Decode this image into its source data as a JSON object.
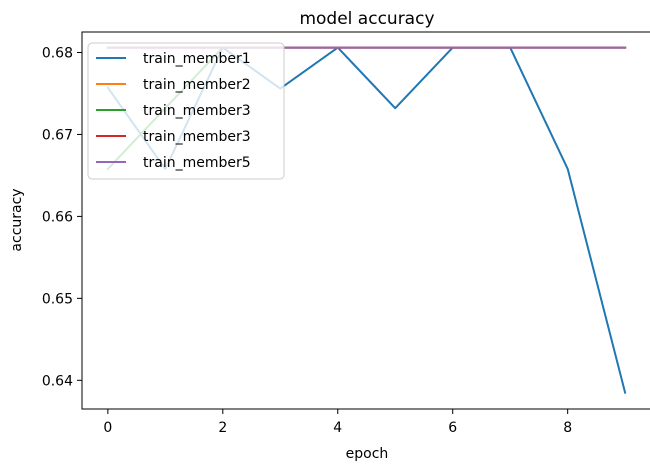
{
  "chart_data": {
    "type": "line",
    "title": "model accuracy",
    "xlabel": "epoch",
    "ylabel": "accuracy",
    "x": [
      0,
      1,
      2,
      3,
      4,
      5,
      6,
      7,
      8,
      9
    ],
    "xlim": [
      -0.45,
      9.45
    ],
    "ylim": [
      0.6365,
      0.6825
    ],
    "xticks": [
      0,
      2,
      4,
      6,
      8
    ],
    "xtick_labels": [
      "0",
      "2",
      "4",
      "6",
      "8"
    ],
    "yticks": [
      0.64,
      0.65,
      0.66,
      0.67,
      0.68
    ],
    "ytick_labels": [
      "0.64",
      "0.65",
      "0.66",
      "0.67",
      "0.68"
    ],
    "grid": false,
    "legend_position": "upper-left",
    "series": [
      {
        "name": "train_member1",
        "color": "#1f77b4",
        "values": [
          0.6757,
          0.6658,
          0.6806,
          0.6756,
          0.6806,
          0.6732,
          0.6806,
          0.6806,
          0.6658,
          0.6385
        ]
      },
      {
        "name": "train_member2",
        "color": "#ff7f0e",
        "values": [
          0.6806,
          0.6806,
          0.6806,
          0.6806,
          0.6806,
          0.6806,
          0.6806,
          0.6806,
          0.6806,
          0.6806
        ]
      },
      {
        "name": "train_member3",
        "color": "#2ca02c",
        "values": [
          0.6658,
          0.6732,
          0.6806,
          0.6806,
          0.6806,
          0.6806,
          0.6806,
          0.6806,
          0.6806,
          0.6806
        ]
      },
      {
        "name": "train_member3",
        "color": "#d62728",
        "values": [
          0.6806,
          0.6806,
          0.6806,
          0.6806,
          0.6806,
          0.6806,
          0.6806,
          0.6806,
          0.6806,
          0.6806
        ]
      },
      {
        "name": "train_member5",
        "color": "#9467bd",
        "values": [
          0.6806,
          0.6806,
          0.6806,
          0.6806,
          0.6806,
          0.6806,
          0.6806,
          0.6806,
          0.6806,
          0.6806
        ]
      }
    ]
  }
}
